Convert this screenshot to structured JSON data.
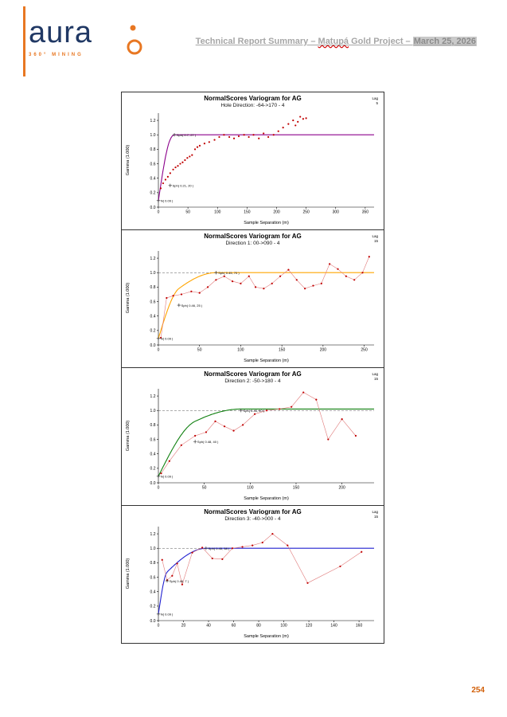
{
  "logo": {
    "text": "aura",
    "subtext": "360° MINING"
  },
  "header": {
    "title_part1": "Technical Report Summary – ",
    "misspelled_word": "Matupá",
    "title_part2": " Gold Project – ",
    "date": "March 25, 2026"
  },
  "footer": {
    "page_number": "254"
  },
  "colors": {
    "accent_orange": "#E87722",
    "logo_navy": "#203864",
    "header_gray": "#A6A6A6",
    "date_highlight_bg": "#C9C9C9",
    "page_number_orange": "#D2600A",
    "point_red": "#C00000",
    "model_purple": "#8B008B",
    "model_orange": "#FFA500",
    "model_green": "#108010",
    "model_blue": "#2020D0"
  },
  "chart_data": [
    {
      "type": "scatter",
      "title": "NormalScores  Variogram for AG",
      "subtitle": "Hole Direction: -64->170 - 4",
      "lag_label": "Lag",
      "lag_value": "5",
      "xlabel": "Sample Separation (m)",
      "ylabel": "Gamma (1.000)",
      "xlim": [
        0,
        365
      ],
      "ylim": [
        0,
        1.3
      ],
      "xticks": [
        0,
        50,
        100,
        150,
        200,
        250,
        300,
        350
      ],
      "yticks": [
        0.0,
        0.2,
        0.4,
        0.6,
        0.8,
        1.0,
        1.2
      ],
      "model_color": "#8B008B",
      "dashed_sill": false,
      "connect_points": false,
      "model": {
        "nugget": 0.09,
        "structures": [
          {
            "c": 0.21,
            "range": 20
          },
          {
            "c": 0.7,
            "range": 27
          }
        ]
      },
      "points": [
        [
          4,
          0.26
        ],
        [
          8,
          0.33
        ],
        [
          12,
          0.38
        ],
        [
          16,
          0.42
        ],
        [
          20,
          0.47
        ],
        [
          25,
          0.52
        ],
        [
          29,
          0.55
        ],
        [
          33,
          0.57
        ],
        [
          37,
          0.6
        ],
        [
          41,
          0.62
        ],
        [
          45,
          0.65
        ],
        [
          49,
          0.68
        ],
        [
          53,
          0.7
        ],
        [
          57,
          0.72
        ],
        [
          62,
          0.8
        ],
        [
          66,
          0.83
        ],
        [
          70,
          0.85
        ],
        [
          78,
          0.88
        ],
        [
          86,
          0.9
        ],
        [
          95,
          0.93
        ],
        [
          103,
          0.97
        ],
        [
          111,
          1.0
        ],
        [
          120,
          0.97
        ],
        [
          128,
          0.95
        ],
        [
          136,
          0.98
        ],
        [
          145,
          1.0
        ],
        [
          153,
          0.97
        ],
        [
          161,
          1.0
        ],
        [
          170,
          0.95
        ],
        [
          178,
          1.02
        ],
        [
          186,
          0.97
        ],
        [
          195,
          1.0
        ],
        [
          203,
          1.05
        ],
        [
          211,
          1.1
        ],
        [
          220,
          1.15
        ],
        [
          228,
          1.2
        ],
        [
          232,
          1.13
        ],
        [
          236,
          1.18
        ],
        [
          240,
          1.25
        ],
        [
          245,
          1.22
        ],
        [
          250,
          1.23
        ]
      ],
      "annotations": [
        {
          "text": "Sph( 0.7, 27 )",
          "x": 27,
          "y": 1.0
        },
        {
          "text": "Sph( 0.21, 20 )",
          "x": 20,
          "y": 0.3
        },
        {
          "text": "N( 0.09 )",
          "x": 0,
          "y": 0.09
        }
      ]
    },
    {
      "type": "line",
      "title": "NormalScores  Variogram for AG",
      "subtitle": "Direction 1: 00->090 - 4",
      "lag_label": "Lag",
      "lag_value": "15",
      "xlabel": "Sample Separation (m)",
      "ylabel": "Gamma (1.000)",
      "xlim": [
        0,
        262
      ],
      "ylim": [
        0,
        1.3
      ],
      "xticks": [
        0,
        50,
        100,
        150,
        200,
        250
      ],
      "yticks": [
        0.0,
        0.2,
        0.4,
        0.6,
        0.8,
        1.0,
        1.2
      ],
      "model_color": "#FFA500",
      "dashed_sill": true,
      "connect_points": true,
      "model": {
        "nugget": 0.09,
        "structures": [
          {
            "c": 0.46,
            "range": 25
          },
          {
            "c": 0.45,
            "range": 70
          }
        ]
      },
      "points": [
        [
          3,
          0.1
        ],
        [
          10,
          0.65
        ],
        [
          18,
          0.68
        ],
        [
          28,
          0.7
        ],
        [
          40,
          0.74
        ],
        [
          50,
          0.72
        ],
        [
          60,
          0.8
        ],
        [
          70,
          0.9
        ],
        [
          80,
          0.95
        ],
        [
          90,
          0.88
        ],
        [
          100,
          0.85
        ],
        [
          110,
          0.95
        ],
        [
          118,
          0.8
        ],
        [
          128,
          0.78
        ],
        [
          138,
          0.85
        ],
        [
          148,
          0.95
        ],
        [
          158,
          1.04
        ],
        [
          168,
          0.9
        ],
        [
          178,
          0.78
        ],
        [
          188,
          0.82
        ],
        [
          198,
          0.85
        ],
        [
          208,
          1.12
        ],
        [
          218,
          1.05
        ],
        [
          228,
          0.95
        ],
        [
          238,
          0.9
        ],
        [
          248,
          1.0
        ],
        [
          256,
          1.22
        ]
      ],
      "annotations": [
        {
          "text": "Sph( 0.45, 70 )",
          "x": 70,
          "y": 1.0
        },
        {
          "text": "Sph( 0.46, 25 )",
          "x": 25,
          "y": 0.55
        },
        {
          "text": "N( 0.09 )",
          "x": 0,
          "y": 0.09
        }
      ]
    },
    {
      "type": "line",
      "title": "NormalScores  Variogram for AG",
      "subtitle": "Direction 2: -50->180 - 4",
      "lag_label": "Lag",
      "lag_value": "15",
      "xlabel": "Sample Separation (m)",
      "ylabel": "Gamma (1.000)",
      "xlim": [
        0,
        235
      ],
      "ylim": [
        0,
        1.3
      ],
      "xticks": [
        0,
        50,
        100,
        150,
        200
      ],
      "yticks": [
        0.0,
        0.2,
        0.4,
        0.6,
        0.8,
        1.0,
        1.2
      ],
      "model_color": "#108010",
      "dashed_sill": true,
      "connect_points": true,
      "model": {
        "nugget": 0.09,
        "structures": [
          {
            "c": 0.48,
            "range": 40
          },
          {
            "c": 0.45,
            "range": 90
          }
        ]
      },
      "points": [
        [
          3,
          0.13
        ],
        [
          12,
          0.3
        ],
        [
          25,
          0.52
        ],
        [
          40,
          0.65
        ],
        [
          52,
          0.7
        ],
        [
          62,
          0.85
        ],
        [
          72,
          0.78
        ],
        [
          82,
          0.72
        ],
        [
          92,
          0.8
        ],
        [
          105,
          0.95
        ],
        [
          118,
          1.0
        ],
        [
          132,
          1.02
        ],
        [
          145,
          1.05
        ],
        [
          158,
          1.25
        ],
        [
          172,
          1.15
        ],
        [
          185,
          0.6
        ],
        [
          200,
          0.88
        ],
        [
          215,
          0.65
        ]
      ],
      "annotations": [
        {
          "text": "Sph( 0.45, 90 )",
          "x": 90,
          "y": 1.0
        },
        {
          "text": "Sph( 0.48, 40 )",
          "x": 40,
          "y": 0.57
        },
        {
          "text": "N( 0.09 )",
          "x": 0,
          "y": 0.09
        }
      ]
    },
    {
      "type": "line",
      "title": "NormalScores  Variogram for AG",
      "subtitle": "Direction 3: -40->000 - 4",
      "lag_label": "Lag",
      "lag_value": "15",
      "xlabel": "Sample Separation (m)",
      "ylabel": "Gamma (1.000)",
      "xlim": [
        0,
        172
      ],
      "ylim": [
        0,
        1.3
      ],
      "xticks": [
        0,
        20,
        40,
        60,
        80,
        100,
        120,
        140,
        160
      ],
      "yticks": [
        0.0,
        0.2,
        0.4,
        0.6,
        0.8,
        1.0,
        1.2
      ],
      "model_color": "#2020D0",
      "dashed_sill": true,
      "connect_points": true,
      "model": {
        "nugget": 0.09,
        "structures": [
          {
            "c": 0.46,
            "range": 7
          },
          {
            "c": 0.45,
            "range": 38
          }
        ]
      },
      "points": [
        [
          3,
          0.84
        ],
        [
          7,
          0.56
        ],
        [
          11,
          0.62
        ],
        [
          15,
          0.79
        ],
        [
          19,
          0.5
        ],
        [
          27,
          0.94
        ],
        [
          35,
          1.01
        ],
        [
          43,
          0.86
        ],
        [
          51,
          0.85
        ],
        [
          59,
          1.0
        ],
        [
          67,
          1.02
        ],
        [
          75,
          1.04
        ],
        [
          83,
          1.08
        ],
        [
          91,
          1.2
        ],
        [
          103,
          1.04
        ],
        [
          119,
          0.52
        ],
        [
          145,
          0.75
        ],
        [
          162,
          0.95
        ]
      ],
      "annotations": [
        {
          "text": "Sph( 0.45, 38 )",
          "x": 38,
          "y": 1.0
        },
        {
          "text": "Sph( 0.46, 7 )",
          "x": 7,
          "y": 0.55
        },
        {
          "text": "N( 0.09 )",
          "x": 0,
          "y": 0.09
        }
      ]
    }
  ]
}
